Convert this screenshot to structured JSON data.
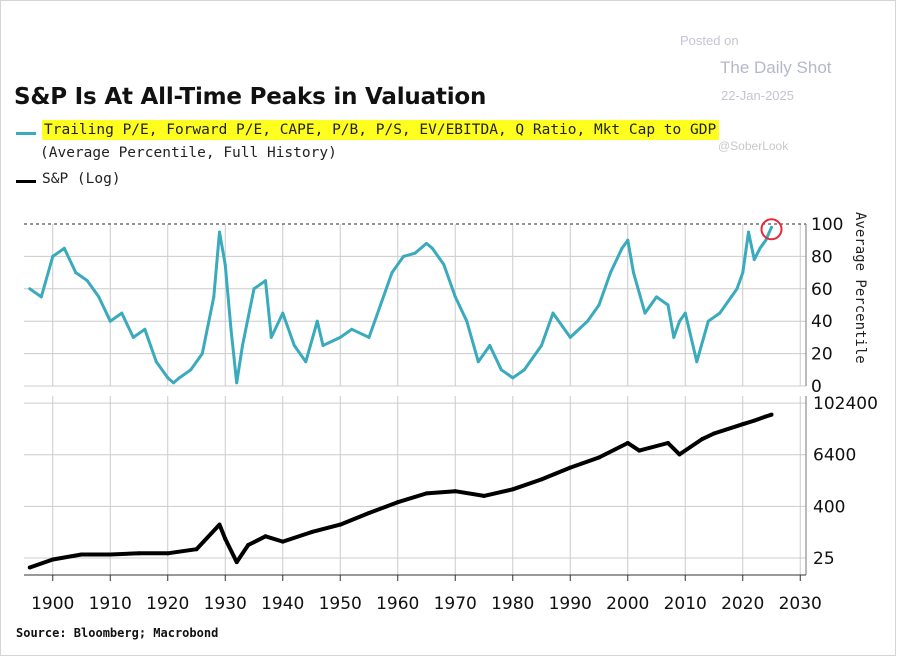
{
  "header": {
    "title": "S&P Is At All-Time Peaks in Valuation",
    "posted_on": "Posted on",
    "source_name": "The Daily Shot",
    "date": "22-Jan-2025",
    "handle": "@SoberLook"
  },
  "legend": {
    "series1_label": "Trailing P/E, Forward P/E, CAPE, P/B, P/S, EV/EBITDA, Q Ratio, Mkt Cap to GDP",
    "series1_sublabel": "(Average Percentile, Full History)",
    "series2_label": "S&P (Log)"
  },
  "footer": {
    "source": "Source: Bloomberg; Macrobond"
  },
  "colors": {
    "valuation": "#3aaabd",
    "sp": "#000000",
    "highlight": "#ffff1f",
    "circle": "#e8283a",
    "grid": "#cccccc"
  },
  "chart_data": [
    {
      "type": "line",
      "ylabel": "Average Percentile",
      "ylim": [
        0,
        100
      ],
      "yticks": [
        0,
        20,
        40,
        60,
        80,
        100
      ],
      "reference_line": 100,
      "series": [
        {
          "x": [
            1896,
            1898,
            1900,
            1902,
            1904,
            1906,
            1908,
            1910,
            1912,
            1914,
            1916,
            1918,
            1920,
            1921,
            1922,
            1924,
            1926,
            1928,
            1929,
            1930,
            1931,
            1932,
            1933,
            1935,
            1937,
            1938,
            1940,
            1942,
            1944,
            1946,
            1947,
            1950,
            1952,
            1955,
            1957,
            1959,
            1961,
            1963,
            1965,
            1966,
            1968,
            1970,
            1972,
            1974,
            1976,
            1978,
            1980,
            1982,
            1985,
            1987,
            1990,
            1993,
            1995,
            1997,
            1999,
            2000,
            2001,
            2003,
            2005,
            2007,
            2008,
            2009,
            2010,
            2012,
            2014,
            2016,
            2018,
            2019,
            2020,
            2021,
            2022,
            2023,
            2024,
            2025
          ],
          "values": [
            60,
            55,
            80,
            85,
            70,
            65,
            55,
            40,
            45,
            30,
            35,
            15,
            5,
            2,
            5,
            10,
            20,
            55,
            95,
            75,
            35,
            2,
            25,
            60,
            65,
            30,
            45,
            25,
            15,
            40,
            25,
            30,
            35,
            30,
            50,
            70,
            80,
            82,
            88,
            85,
            75,
            55,
            40,
            15,
            25,
            10,
            5,
            10,
            25,
            45,
            30,
            40,
            50,
            70,
            85,
            90,
            70,
            45,
            55,
            50,
            30,
            40,
            45,
            15,
            40,
            45,
            55,
            60,
            70,
            95,
            78,
            85,
            90,
            98
          ]
        }
      ]
    },
    {
      "type": "line",
      "ylabel": "",
      "scale": "log",
      "yticks": [
        25,
        400,
        6400,
        102400
      ],
      "ylim": [
        10,
        150000
      ],
      "series": [
        {
          "x": [
            1896,
            1900,
            1905,
            1910,
            1915,
            1920,
            1925,
            1929,
            1930,
            1932,
            1934,
            1937,
            1940,
            1945,
            1950,
            1955,
            1960,
            1965,
            1970,
            1975,
            1980,
            1985,
            1990,
            1995,
            2000,
            2002,
            2007,
            2009,
            2013,
            2015,
            2020,
            2022,
            2024,
            2025
          ],
          "values": [
            15,
            23,
            30,
            30,
            32,
            32,
            40,
            150,
            70,
            20,
            50,
            80,
            60,
            100,
            150,
            280,
            500,
            800,
            900,
            700,
            1000,
            1700,
            3200,
            5500,
            12000,
            8000,
            12000,
            6500,
            15000,
            20000,
            33000,
            40000,
            50000,
            55000
          ]
        }
      ]
    }
  ],
  "x_axis": {
    "ticks": [
      1900,
      1910,
      1920,
      1930,
      1940,
      1950,
      1960,
      1970,
      1980,
      1990,
      2000,
      2010,
      2020,
      2030
    ],
    "xlim": [
      1895,
      2031
    ]
  }
}
